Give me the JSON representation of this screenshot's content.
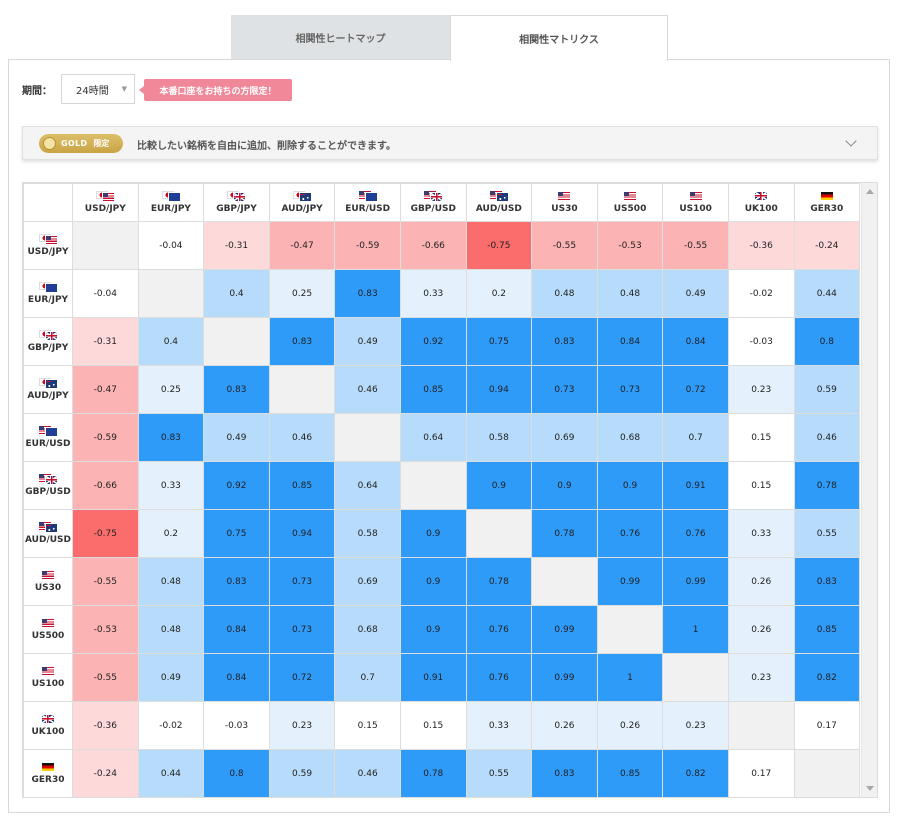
{
  "tabs": [
    {
      "label": "相関性ヒートマップ",
      "active": false
    },
    {
      "label": "相関性マトリクス",
      "active": true
    }
  ],
  "period": {
    "label": "期間：",
    "selected": "24時間",
    "limited_badge": "本番口座をお持ちの方限定！"
  },
  "banner": {
    "gold_text": "GOLD",
    "gold_suffix": "限定",
    "text": "比較したい銘柄を自由に追加、削除することができます。"
  },
  "colors": {
    "strong_positive": "#2f9bf9",
    "positive": "#b7dcfb",
    "weak_positive": "#e4f1fd",
    "neutral": "#ffffff",
    "weak_negative": "#fdd9d9",
    "negative": "#fcb3b3",
    "strong_negative": "#fb6c6c",
    "diagonal": "#f1f1f1",
    "tab_inactive_bg": "#dfe2e4",
    "badge": "#f0889a",
    "gold": "#c9a445"
  },
  "matrix": {
    "instruments": [
      {
        "symbol": "USD/JPY",
        "flag": "us-jp"
      },
      {
        "symbol": "EUR/JPY",
        "flag": "eu-jp"
      },
      {
        "symbol": "GBP/JPY",
        "flag": "gb-jp"
      },
      {
        "symbol": "AUD/JPY",
        "flag": "au-jp"
      },
      {
        "symbol": "EUR/USD",
        "flag": "eu-us"
      },
      {
        "symbol": "GBP/USD",
        "flag": "gb-us"
      },
      {
        "symbol": "AUD/USD",
        "flag": "au-us"
      },
      {
        "symbol": "US30",
        "flag": "us"
      },
      {
        "symbol": "US500",
        "flag": "us"
      },
      {
        "symbol": "US100",
        "flag": "us"
      },
      {
        "symbol": "UK100",
        "flag": "gb"
      },
      {
        "symbol": "GER30",
        "flag": "de"
      }
    ],
    "rows": [
      [
        "",
        "-0.04",
        "-0.31",
        "-0.47",
        "-0.59",
        "-0.66",
        "-0.75",
        "-0.55",
        "-0.53",
        "-0.55",
        "-0.36",
        "-0.24"
      ],
      [
        "-0.04",
        "",
        "0.4",
        "0.25",
        "0.83",
        "0.33",
        "0.2",
        "0.48",
        "0.48",
        "0.49",
        "-0.02",
        "0.44"
      ],
      [
        "-0.31",
        "0.4",
        "",
        "0.83",
        "0.49",
        "0.92",
        "0.75",
        "0.83",
        "0.84",
        "0.84",
        "-0.03",
        "0.8"
      ],
      [
        "-0.47",
        "0.25",
        "0.83",
        "",
        "0.46",
        "0.85",
        "0.94",
        "0.73",
        "0.73",
        "0.72",
        "0.23",
        "0.59"
      ],
      [
        "-0.59",
        "0.83",
        "0.49",
        "0.46",
        "",
        "0.64",
        "0.58",
        "0.69",
        "0.68",
        "0.7",
        "0.15",
        "0.46"
      ],
      [
        "-0.66",
        "0.33",
        "0.92",
        "0.85",
        "0.64",
        "",
        "0.9",
        "0.9",
        "0.9",
        "0.91",
        "0.15",
        "0.78"
      ],
      [
        "-0.75",
        "0.2",
        "0.75",
        "0.94",
        "0.58",
        "0.9",
        "",
        "0.78",
        "0.76",
        "0.76",
        "0.33",
        "0.55"
      ],
      [
        "-0.55",
        "0.48",
        "0.83",
        "0.73",
        "0.69",
        "0.9",
        "0.78",
        "",
        "0.99",
        "0.99",
        "0.26",
        "0.83"
      ],
      [
        "-0.53",
        "0.48",
        "0.84",
        "0.73",
        "0.68",
        "0.9",
        "0.76",
        "0.99",
        "",
        "1",
        "0.26",
        "0.85"
      ],
      [
        "-0.55",
        "0.49",
        "0.84",
        "0.72",
        "0.7",
        "0.91",
        "0.76",
        "0.99",
        "1",
        "",
        "0.23",
        "0.82"
      ],
      [
        "-0.36",
        "-0.02",
        "-0.03",
        "0.23",
        "0.15",
        "0.15",
        "0.33",
        "0.26",
        "0.26",
        "0.23",
        "",
        "0.17"
      ],
      [
        "-0.24",
        "0.44",
        "0.8",
        "0.59",
        "0.46",
        "0.78",
        "0.55",
        "0.83",
        "0.85",
        "0.82",
        "0.17",
        ""
      ]
    ]
  }
}
